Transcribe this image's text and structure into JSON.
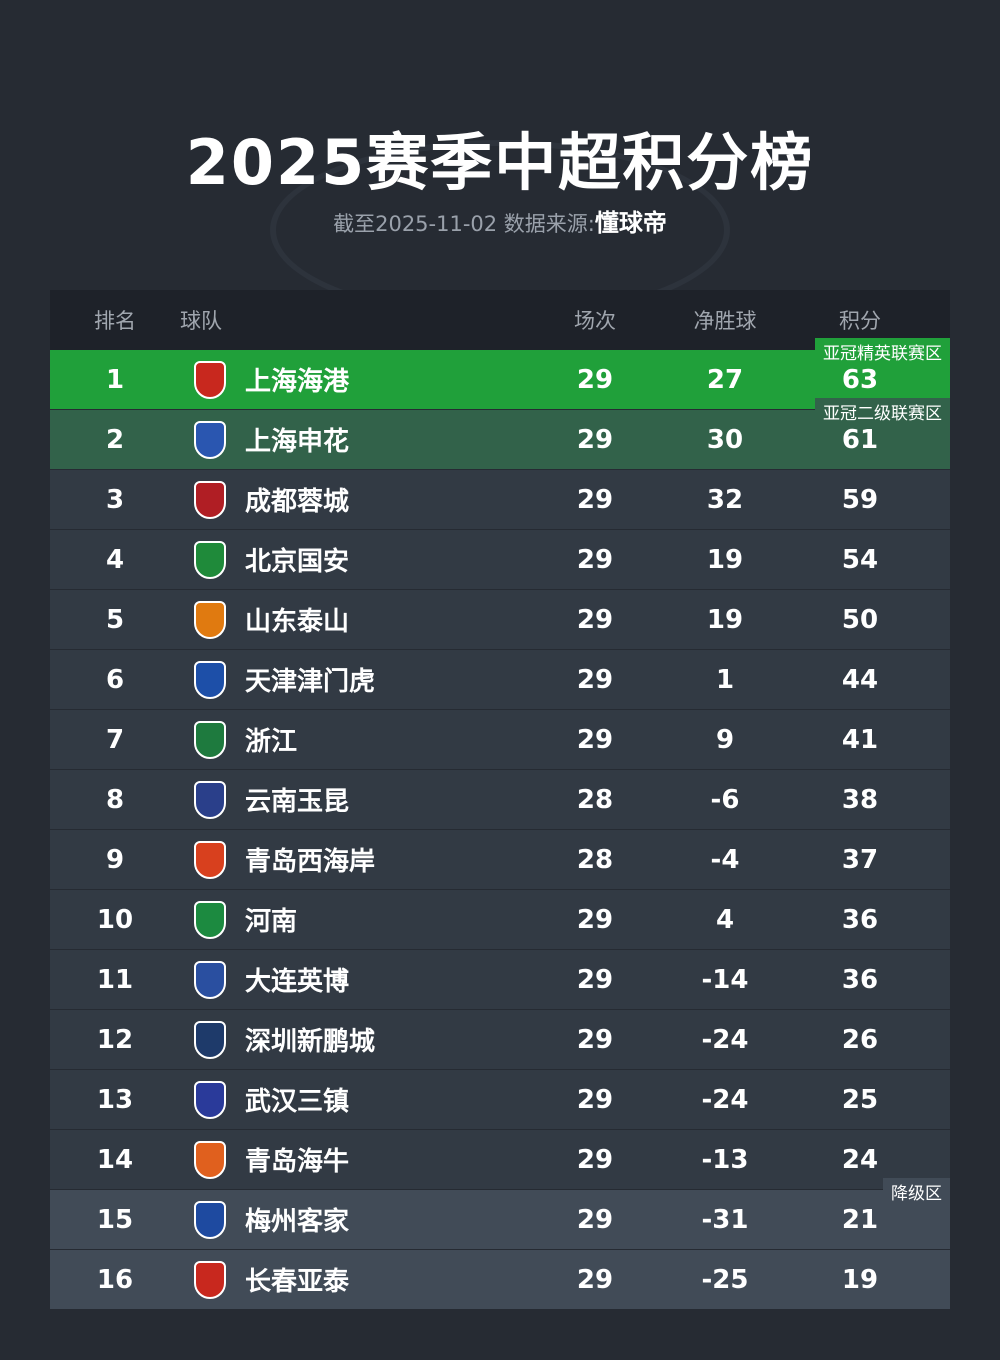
{
  "title": "2025赛季中超积分榜",
  "subtitle": {
    "date_label": "截至2025-11-02 数据来源:",
    "source": "懂球帝"
  },
  "columns": {
    "rank": "排名",
    "team": "球队",
    "played": "场次",
    "gd": "净胜球",
    "points": "积分"
  },
  "zones": {
    "elite": "亚冠精英联赛区",
    "two": "亚冠二级联赛区",
    "relegation": "降级区"
  },
  "colors": {
    "background": "#262b33",
    "header": "#1e2229",
    "elite": "#20a03a",
    "two": "#32624a",
    "normal": "#323a44",
    "relegation": "#414b57"
  },
  "rows": [
    {
      "rank": "1",
      "team": "上海海港",
      "played": "29",
      "gd": "27",
      "points": "63",
      "logo_color": "#c8281e"
    },
    {
      "rank": "2",
      "team": "上海申花",
      "played": "29",
      "gd": "30",
      "points": "61",
      "logo_color": "#2a56b0"
    },
    {
      "rank": "3",
      "team": "成都蓉城",
      "played": "29",
      "gd": "32",
      "points": "59",
      "logo_color": "#b01e24"
    },
    {
      "rank": "4",
      "team": "北京国安",
      "played": "29",
      "gd": "19",
      "points": "54",
      "logo_color": "#1f8a3a"
    },
    {
      "rank": "5",
      "team": "山东泰山",
      "played": "29",
      "gd": "19",
      "points": "50",
      "logo_color": "#e07a10"
    },
    {
      "rank": "6",
      "team": "天津津门虎",
      "played": "29",
      "gd": "1",
      "points": "44",
      "logo_color": "#1d4fa8"
    },
    {
      "rank": "7",
      "team": "浙江",
      "played": "29",
      "gd": "9",
      "points": "41",
      "logo_color": "#1e7a3e"
    },
    {
      "rank": "8",
      "team": "云南玉昆",
      "played": "28",
      "gd": "-6",
      "points": "38",
      "logo_color": "#2a3f8a"
    },
    {
      "rank": "9",
      "team": "青岛西海岸",
      "played": "28",
      "gd": "-4",
      "points": "37",
      "logo_color": "#d8401e"
    },
    {
      "rank": "10",
      "team": "河南",
      "played": "29",
      "gd": "4",
      "points": "36",
      "logo_color": "#1c8a40"
    },
    {
      "rank": "11",
      "team": "大连英博",
      "played": "29",
      "gd": "-14",
      "points": "36",
      "logo_color": "#2a4fa0"
    },
    {
      "rank": "12",
      "team": "深圳新鹏城",
      "played": "29",
      "gd": "-24",
      "points": "26",
      "logo_color": "#1e3a6a"
    },
    {
      "rank": "13",
      "team": "武汉三镇",
      "played": "29",
      "gd": "-24",
      "points": "25",
      "logo_color": "#2a3a9a"
    },
    {
      "rank": "14",
      "team": "青岛海牛",
      "played": "29",
      "gd": "-13",
      "points": "24",
      "logo_color": "#e0601e"
    },
    {
      "rank": "15",
      "team": "梅州客家",
      "played": "29",
      "gd": "-31",
      "points": "21",
      "logo_color": "#1e4aa0"
    },
    {
      "rank": "16",
      "team": "长春亚泰",
      "played": "29",
      "gd": "-25",
      "points": "19",
      "logo_color": "#c8281e"
    }
  ]
}
